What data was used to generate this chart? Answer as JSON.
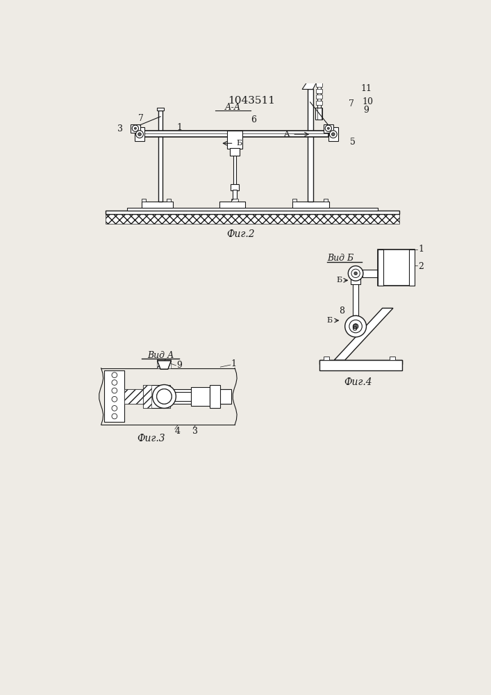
{
  "title": "1043511",
  "bg_color": "#eeebe5",
  "line_color": "#1a1a1a",
  "fig2_label": "Фиг.2",
  "fig3_label": "Фиг.3",
  "fig4_label": "Фиг.4",
  "vida_label": "Вид А",
  "vidb_label": "Вид Б",
  "aa_label": "А-А",
  "font_size": 9,
  "title_font_size": 10
}
